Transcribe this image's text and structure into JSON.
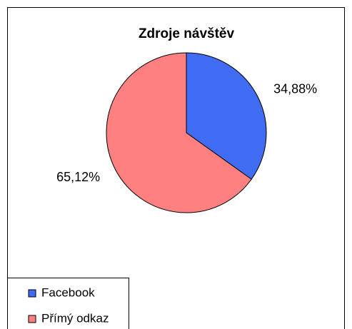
{
  "chart_data": {
    "type": "pie",
    "title": "Zdroje návštěv",
    "categories": [
      "Facebook",
      "Přímý odkaz"
    ],
    "values": [
      34.88,
      65.12
    ],
    "value_labels": [
      "34,88%",
      "65,12%"
    ],
    "colors": [
      "#3f6cf2",
      "#ff8080"
    ],
    "legend": "bottom-left"
  }
}
